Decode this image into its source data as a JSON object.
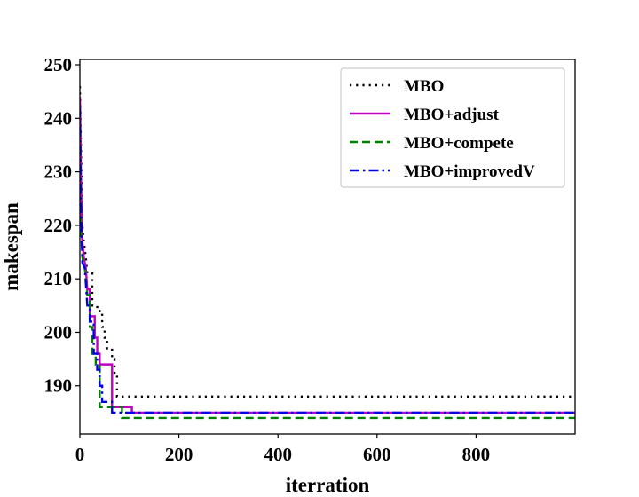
{
  "chart_data": {
    "type": "line",
    "title": "",
    "xlabel": "iterration",
    "ylabel": "makespan",
    "xlim": [
      0,
      1000
    ],
    "ylim": [
      181,
      251
    ],
    "xticks": [
      0,
      200,
      400,
      600,
      800
    ],
    "yticks": [
      190,
      200,
      210,
      220,
      230,
      240,
      250
    ],
    "grid": false,
    "legend_position": "top-right",
    "series": [
      {
        "name": "MBO",
        "color": "#000000",
        "style": "dotted",
        "points": [
          [
            0,
            246
          ],
          [
            3,
            230
          ],
          [
            5,
            220
          ],
          [
            8,
            217
          ],
          [
            12,
            214
          ],
          [
            15,
            211
          ],
          [
            25,
            211
          ],
          [
            25,
            205
          ],
          [
            35,
            205
          ],
          [
            35,
            204
          ],
          [
            45,
            204
          ],
          [
            45,
            201
          ],
          [
            50,
            201
          ],
          [
            50,
            199
          ],
          [
            55,
            199
          ],
          [
            55,
            197
          ],
          [
            65,
            197
          ],
          [
            65,
            195
          ],
          [
            70,
            195
          ],
          [
            70,
            192
          ],
          [
            75,
            192
          ],
          [
            75,
            188
          ],
          [
            999,
            188
          ]
        ]
      },
      {
        "name": "MBO+adjust",
        "color": "#c000c0",
        "style": "solid",
        "points": [
          [
            0,
            244
          ],
          [
            2,
            230
          ],
          [
            4,
            218
          ],
          [
            8,
            214
          ],
          [
            12,
            212
          ],
          [
            15,
            208
          ],
          [
            20,
            208
          ],
          [
            20,
            203
          ],
          [
            30,
            203
          ],
          [
            30,
            199
          ],
          [
            35,
            199
          ],
          [
            35,
            196
          ],
          [
            40,
            196
          ],
          [
            40,
            194
          ],
          [
            50,
            194
          ],
          [
            50,
            194
          ],
          [
            65,
            194
          ],
          [
            65,
            186
          ],
          [
            105,
            186
          ],
          [
            105,
            185
          ],
          [
            999,
            185
          ]
        ]
      },
      {
        "name": "MBO+compete",
        "color": "#008000",
        "style": "dashed",
        "points": [
          [
            0,
            224
          ],
          [
            3,
            218
          ],
          [
            5,
            214
          ],
          [
            10,
            212
          ],
          [
            15,
            207
          ],
          [
            20,
            207
          ],
          [
            20,
            201
          ],
          [
            25,
            201
          ],
          [
            25,
            196
          ],
          [
            32,
            196
          ],
          [
            32,
            194
          ],
          [
            40,
            194
          ],
          [
            40,
            186
          ],
          [
            85,
            186
          ],
          [
            85,
            184
          ],
          [
            999,
            184
          ]
        ]
      },
      {
        "name": "MBO+improvedV",
        "color": "#0000e0",
        "style": "dashdot",
        "points": [
          [
            0,
            242
          ],
          [
            2,
            225
          ],
          [
            5,
            213
          ],
          [
            10,
            212
          ],
          [
            15,
            205
          ],
          [
            20,
            205
          ],
          [
            20,
            202
          ],
          [
            28,
            202
          ],
          [
            28,
            196
          ],
          [
            35,
            196
          ],
          [
            35,
            193
          ],
          [
            40,
            193
          ],
          [
            40,
            190
          ],
          [
            45,
            190
          ],
          [
            45,
            187
          ],
          [
            65,
            187
          ],
          [
            65,
            185
          ],
          [
            999,
            185
          ]
        ]
      }
    ]
  }
}
